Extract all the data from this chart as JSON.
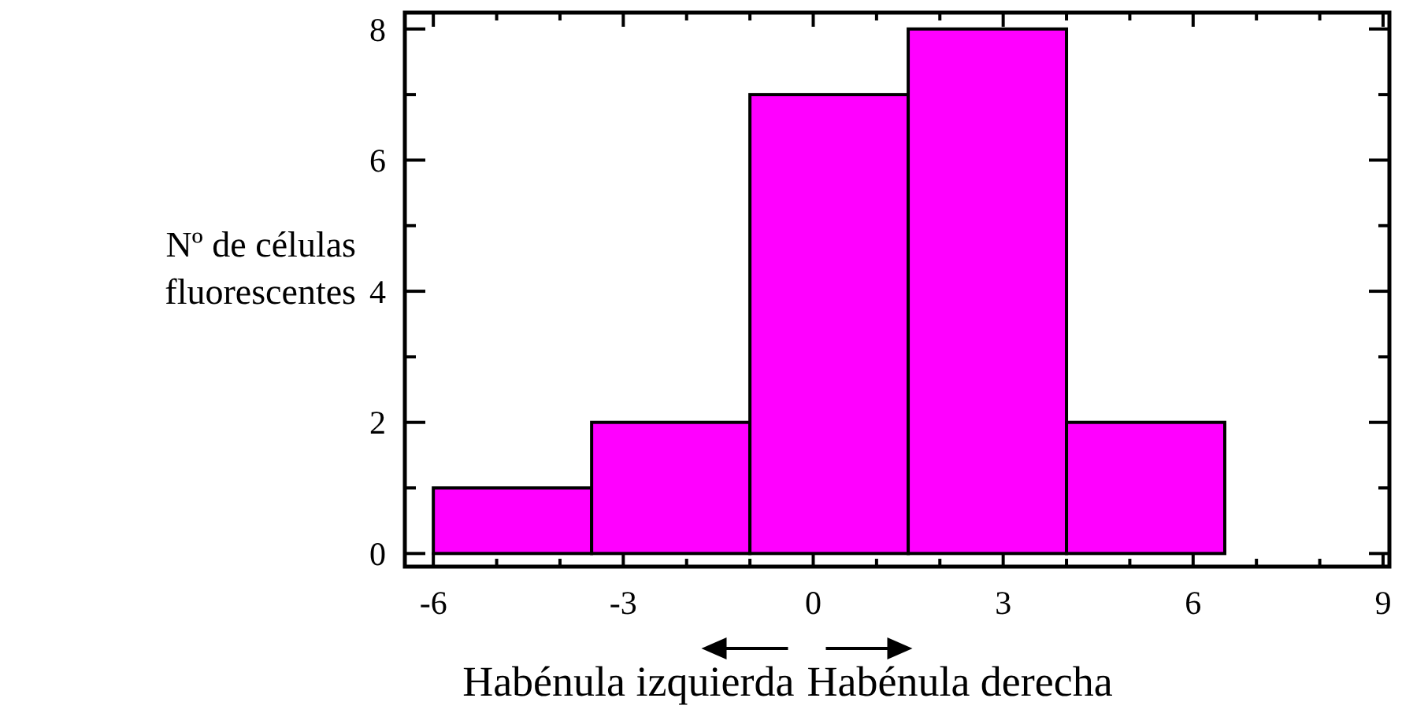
{
  "chart_data": {
    "type": "histogram",
    "xlabel": "Habénula izquierda Habénula derecha",
    "ylabel": "Nº de células fluorescentes",
    "bins": [
      -6,
      -3.5,
      -1,
      1.5,
      4,
      6.5,
      9
    ],
    "values": [
      1,
      2,
      7,
      8,
      2,
      0
    ],
    "color": "#ff00ff",
    "xlim": [
      -6.45,
      9.1
    ],
    "ylim": [
      -0.2,
      8.25
    ],
    "xticks": [
      -6,
      {
        "value": -5,
        "label": null
      },
      {
        "value": -4,
        "label": null
      },
      -3,
      {
        "value": -2,
        "label": null
      },
      {
        "value": -1,
        "label": null
      },
      0,
      {
        "value": 1,
        "label": null
      },
      {
        "value": 2,
        "label": null
      },
      3,
      {
        "value": 4,
        "label": null
      },
      {
        "value": 5,
        "label": null
      },
      6,
      {
        "value": 7,
        "label": null
      },
      {
        "value": 8,
        "label": null
      },
      9
    ],
    "yticks": [
      0,
      {
        "value": 1,
        "label": null
      },
      2,
      {
        "value": 3,
        "label": null
      },
      4,
      {
        "value": 5,
        "label": null
      },
      6,
      {
        "value": 7,
        "label": null
      },
      8
    ],
    "grid": false
  }
}
